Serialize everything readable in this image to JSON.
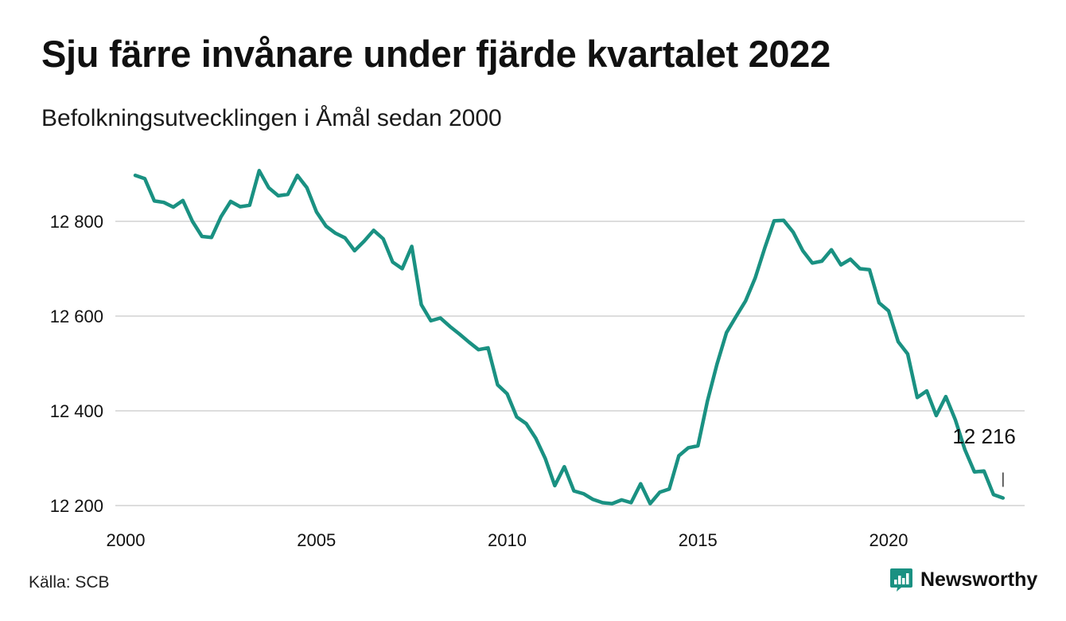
{
  "title": "Sju färre invånare under fjärde kvartalet 2022",
  "subtitle": "Befolkningsutvecklingen i Åmål sedan 2000",
  "source": "Källa: SCB",
  "brand": {
    "name": "Newsworthy",
    "icon": "bar-chart-logo-icon",
    "color": "#1a9182"
  },
  "colors": {
    "line": "#1a9182",
    "grid": "#dddddd",
    "text": "#111111"
  },
  "chart_data": {
    "type": "line",
    "xlim": [
      2000,
      2023.5
    ],
    "ylim": [
      12180,
      12920
    ],
    "x_ticks": [
      2000,
      2005,
      2010,
      2015,
      2020
    ],
    "x_tick_labels": [
      "2000",
      "2005",
      "2010",
      "2015",
      "2020"
    ],
    "y_ticks": [
      12200,
      12400,
      12600,
      12800
    ],
    "y_tick_labels": [
      "12 200",
      "12 400",
      "12 600",
      "12 800"
    ],
    "grid": "horizontal",
    "end_label": "12 216",
    "x": [
      2000.25,
      2000.5,
      2000.75,
      2001.0,
      2001.25,
      2001.5,
      2001.75,
      2002.0,
      2002.25,
      2002.5,
      2002.75,
      2003.0,
      2003.25,
      2003.5,
      2003.75,
      2004.0,
      2004.25,
      2004.5,
      2004.75,
      2005.0,
      2005.25,
      2005.5,
      2005.75,
      2006.0,
      2006.25,
      2006.5,
      2006.75,
      2007.0,
      2007.25,
      2007.5,
      2007.75,
      2008.0,
      2008.25,
      2008.5,
      2008.75,
      2009.0,
      2009.25,
      2009.5,
      2009.75,
      2010.0,
      2010.25,
      2010.5,
      2010.75,
      2011.0,
      2011.25,
      2011.5,
      2011.75,
      2012.0,
      2012.25,
      2012.5,
      2012.75,
      2013.0,
      2013.25,
      2013.5,
      2013.75,
      2014.0,
      2014.25,
      2014.5,
      2014.75,
      2015.0,
      2015.25,
      2015.5,
      2015.75,
      2016.0,
      2016.25,
      2016.5,
      2016.75,
      2017.0,
      2017.25,
      2017.5,
      2017.75,
      2018.0,
      2018.25,
      2018.5,
      2018.75,
      2019.0,
      2019.25,
      2019.5,
      2019.75,
      2020.0,
      2020.25,
      2020.5,
      2020.75,
      2021.0,
      2021.25,
      2021.5,
      2021.75,
      2022.0,
      2022.25,
      2022.5,
      2022.75,
      2023.0
    ],
    "y": [
      12897,
      12890,
      12843,
      12840,
      12830,
      12844,
      12800,
      12768,
      12766,
      12810,
      12842,
      12831,
      12834,
      12907,
      12871,
      12854,
      12857,
      12897,
      12871,
      12820,
      12790,
      12775,
      12765,
      12738,
      12758,
      12781,
      12763,
      12714,
      12700,
      12747,
      12624,
      12590,
      12596,
      12578,
      12562,
      12545,
      12529,
      12533,
      12455,
      12436,
      12387,
      12373,
      12342,
      12299,
      12242,
      12282,
      12231,
      12225,
      12213,
      12206,
      12204,
      12212,
      12206,
      12246,
      12204,
      12228,
      12235,
      12305,
      12322,
      12326,
      12420,
      12498,
      12565,
      12599,
      12632,
      12680,
      12743,
      12801,
      12802,
      12777,
      12738,
      12712,
      12716,
      12740,
      12708,
      12720,
      12700,
      12698,
      12628,
      12611,
      12546,
      12520,
      12428,
      12442,
      12390,
      12430,
      12381,
      12318,
      12271,
      12273,
      12223,
      12216
    ]
  }
}
